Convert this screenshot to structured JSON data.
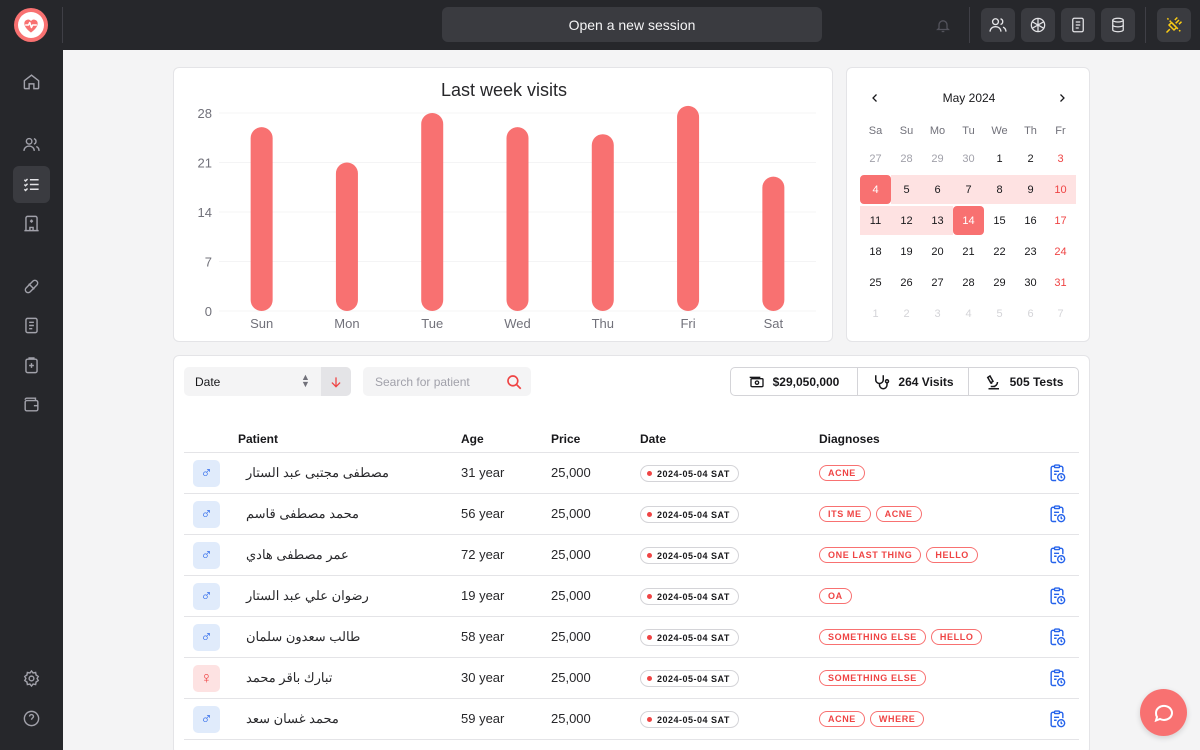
{
  "topbar": {
    "session_label": "Open a new session",
    "icons": [
      "users-icon",
      "openai-icon",
      "document-icon",
      "database-icon",
      "plug-disconnected-icon"
    ]
  },
  "sidebar": {
    "items": [
      "home-icon",
      "users-icon",
      "checklist-icon",
      "hospital-icon",
      "pill-icon",
      "report-icon",
      "clipboard-plus-icon",
      "wallet-icon"
    ],
    "bottom": [
      "settings-icon",
      "help-icon"
    ],
    "active": "checklist-icon"
  },
  "chart_data": {
    "type": "bar",
    "title": "Last week visits",
    "categories": [
      "Sun",
      "Mon",
      "Tue",
      "Wed",
      "Thu",
      "Fri",
      "Sat"
    ],
    "values": [
      26,
      21,
      28,
      26,
      25,
      29,
      19
    ],
    "yticks": [
      "28",
      "21",
      "14",
      "7",
      "0"
    ],
    "ylim": [
      0,
      28
    ],
    "grid": true,
    "color": "#f87171"
  },
  "calendar": {
    "month": "May 2024",
    "dow": [
      "Sa",
      "Su",
      "Mo",
      "Tu",
      "We",
      "Th",
      "Fr"
    ],
    "weeks": [
      [
        "27",
        "28",
        "29",
        "30",
        "1",
        "2",
        "3"
      ],
      [
        "4",
        "5",
        "6",
        "7",
        "8",
        "9",
        "10"
      ],
      [
        "11",
        "12",
        "13",
        "14",
        "15",
        "16",
        "17"
      ],
      [
        "18",
        "19",
        "20",
        "21",
        "22",
        "23",
        "24"
      ],
      [
        "25",
        "26",
        "27",
        "28",
        "29",
        "30",
        "31"
      ],
      [
        "1",
        "2",
        "3",
        "4",
        "5",
        "6",
        "7"
      ]
    ],
    "range_start": "4",
    "range_end": "14"
  },
  "filters": {
    "sort_label": "Date",
    "search_placeholder": "Search for patient"
  },
  "stats": {
    "revenue": "$29,050,000",
    "visits": "264 Visits",
    "tests": "505 Tests"
  },
  "table": {
    "headers": {
      "patient": "Patient",
      "age": "Age",
      "price": "Price",
      "date": "Date",
      "diagnoses": "Diagnoses"
    },
    "rows": [
      {
        "gender": "male",
        "name": "مصطفى مجتبى عبد الستار",
        "age": "31 year",
        "price": "25,000",
        "date": "2024-05-04 SAT",
        "tags": [
          "ACNE"
        ]
      },
      {
        "gender": "male",
        "name": "محمد مصطفى قاسم",
        "age": "56 year",
        "price": "25,000",
        "date": "2024-05-04 SAT",
        "tags": [
          "ITS ME",
          "ACNE"
        ]
      },
      {
        "gender": "male",
        "name": "عمر مصطفى هادي",
        "age": "72 year",
        "price": "25,000",
        "date": "2024-05-04 SAT",
        "tags": [
          "ONE LAST THING",
          "HELLO"
        ]
      },
      {
        "gender": "male",
        "name": "رضوان علي عبد الستار",
        "age": "19 year",
        "price": "25,000",
        "date": "2024-05-04 SAT",
        "tags": [
          "OA"
        ]
      },
      {
        "gender": "male",
        "name": "طالب سعدون سلمان",
        "age": "58 year",
        "price": "25,000",
        "date": "2024-05-04 SAT",
        "tags": [
          "SOMETHING ELSE",
          "HELLO"
        ]
      },
      {
        "gender": "female",
        "name": "تبارك باقر محمد",
        "age": "30 year",
        "price": "25,000",
        "date": "2024-05-04 SAT",
        "tags": [
          "SOMETHING ELSE"
        ]
      },
      {
        "gender": "male",
        "name": "محمد غسان سعد",
        "age": "59 year",
        "price": "25,000",
        "date": "2024-05-04 SAT",
        "tags": [
          "ACNE",
          "WHERE"
        ]
      }
    ]
  },
  "colors": {
    "accent": "#f87171",
    "dark": "#26272b",
    "male": "#2563eb",
    "female": "#ef4444"
  }
}
